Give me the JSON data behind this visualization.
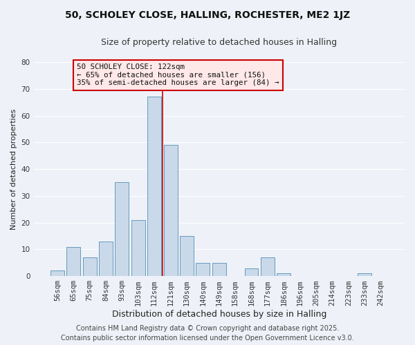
{
  "title": "50, SCHOLEY CLOSE, HALLING, ROCHESTER, ME2 1JZ",
  "subtitle": "Size of property relative to detached houses in Halling",
  "xlabel": "Distribution of detached houses by size in Halling",
  "ylabel": "Number of detached properties",
  "bar_labels": [
    "56sqm",
    "65sqm",
    "75sqm",
    "84sqm",
    "93sqm",
    "103sqm",
    "112sqm",
    "121sqm",
    "130sqm",
    "140sqm",
    "149sqm",
    "158sqm",
    "168sqm",
    "177sqm",
    "186sqm",
    "196sqm",
    "205sqm",
    "214sqm",
    "223sqm",
    "233sqm",
    "242sqm"
  ],
  "bar_values": [
    2,
    11,
    7,
    13,
    35,
    21,
    67,
    49,
    15,
    5,
    5,
    0,
    3,
    7,
    1,
    0,
    0,
    0,
    0,
    1,
    0
  ],
  "bar_color": "#c9d9ea",
  "bar_edge_color": "#6699bb",
  "vline_color": "#cc0000",
  "ylim": [
    0,
    80
  ],
  "yticks": [
    0,
    10,
    20,
    30,
    40,
    50,
    60,
    70,
    80
  ],
  "annotation_title": "50 SCHOLEY CLOSE: 122sqm",
  "annotation_line1": "← 65% of detached houses are smaller (156)",
  "annotation_line2": "35% of semi-detached houses are larger (84) →",
  "annotation_box_facecolor": "#ffe8e8",
  "annotation_edge_color": "#cc0000",
  "footer1": "Contains HM Land Registry data © Crown copyright and database right 2025.",
  "footer2": "Contains public sector information licensed under the Open Government Licence v3.0.",
  "background_color": "#eef2f8",
  "grid_color": "#ffffff",
  "title_fontsize": 10,
  "subtitle_fontsize": 9,
  "xlabel_fontsize": 9,
  "ylabel_fontsize": 8,
  "tick_fontsize": 7.5,
  "footer_fontsize": 7
}
